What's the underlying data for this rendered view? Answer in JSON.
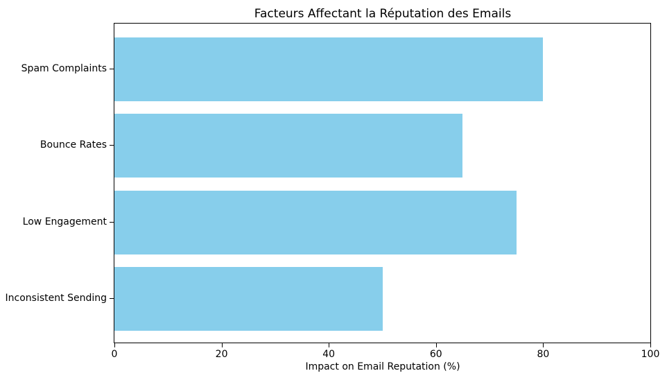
{
  "title": "Facteurs Affectant la Réputation des Emails",
  "chart_data": {
    "type": "bar",
    "orientation": "horizontal",
    "title": "Facteurs Affectant la Réputation des Emails",
    "xlabel": "Impact on Email Reputation (%)",
    "ylabel": "",
    "categories": [
      "Spam Complaints",
      "Bounce Rates",
      "Low Engagement",
      "Inconsistent Sending"
    ],
    "values": [
      80,
      65,
      75,
      50
    ],
    "xlim": [
      0,
      100
    ],
    "xticks": [
      0,
      20,
      40,
      60,
      80,
      100
    ],
    "bar_color": "#87CEEB",
    "spine_color": "#000000",
    "grid": false,
    "legend": null
  }
}
